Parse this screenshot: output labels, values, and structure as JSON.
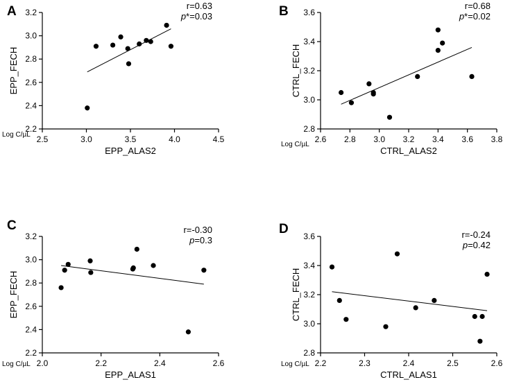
{
  "chart_data": [
    {
      "panel": "A",
      "type": "scatter",
      "xlabel": "EPP_ALAS2",
      "ylabel": "EPP_FECH",
      "unit_label": "Log C/µL",
      "stat_r": "r=0.63",
      "stat_p_prefix": "p",
      "stat_p_suffix": "*=0.03",
      "xlim": [
        2.5,
        4.5
      ],
      "ylim": [
        2.2,
        3.2
      ],
      "xticks": [
        2.5,
        3.0,
        3.5,
        4.0,
        4.5
      ],
      "yticks": [
        2.2,
        2.4,
        2.6,
        2.8,
        3.0,
        3.2
      ],
      "xtick_labels": [
        "2.5",
        "3.0",
        "3.5",
        "4.0",
        "4.5"
      ],
      "ytick_labels": [
        "2.2",
        "2.4",
        "2.6",
        "2.8",
        "3.0",
        "3.2"
      ],
      "points": [
        {
          "x": 3.01,
          "y": 2.38
        },
        {
          "x": 3.11,
          "y": 2.91
        },
        {
          "x": 3.3,
          "y": 2.92
        },
        {
          "x": 3.39,
          "y": 2.99
        },
        {
          "x": 3.47,
          "y": 2.89
        },
        {
          "x": 3.48,
          "y": 2.76
        },
        {
          "x": 3.6,
          "y": 2.93
        },
        {
          "x": 3.68,
          "y": 2.96
        },
        {
          "x": 3.73,
          "y": 2.95
        },
        {
          "x": 3.91,
          "y": 3.09
        },
        {
          "x": 3.96,
          "y": 2.91
        }
      ],
      "fit_line": {
        "x1": 3.01,
        "y1": 2.69,
        "x2": 3.96,
        "y2": 3.06
      }
    },
    {
      "panel": "B",
      "type": "scatter",
      "xlabel": "CTRL_ALAS2",
      "ylabel": "CTRL_FECH",
      "unit_label": "Log C/µL",
      "stat_r": "r=0.68",
      "stat_p_prefix": "p",
      "stat_p_suffix": "*=0.02",
      "xlim": [
        2.6,
        3.8
      ],
      "ylim": [
        2.8,
        3.6
      ],
      "xticks": [
        2.6,
        2.8,
        3.0,
        3.2,
        3.4,
        3.6,
        3.8
      ],
      "yticks": [
        2.8,
        3.0,
        3.2,
        3.4,
        3.6
      ],
      "xtick_labels": [
        "2.6",
        "2.8",
        "3.0",
        "3.2",
        "3.4",
        "3.6",
        "3.8"
      ],
      "ytick_labels": [
        "2.8",
        "3.0",
        "3.2",
        "3.4",
        "3.6"
      ],
      "points": [
        {
          "x": 2.74,
          "y": 3.05
        },
        {
          "x": 2.81,
          "y": 2.98
        },
        {
          "x": 2.93,
          "y": 3.11
        },
        {
          "x": 2.96,
          "y": 3.05
        },
        {
          "x": 2.96,
          "y": 3.04
        },
        {
          "x": 3.07,
          "y": 2.88
        },
        {
          "x": 3.26,
          "y": 3.16
        },
        {
          "x": 3.4,
          "y": 3.48
        },
        {
          "x": 3.4,
          "y": 3.34
        },
        {
          "x": 3.43,
          "y": 3.39
        },
        {
          "x": 3.63,
          "y": 3.16
        }
      ],
      "fit_line": {
        "x1": 2.74,
        "y1": 2.97,
        "x2": 3.63,
        "y2": 3.36
      }
    },
    {
      "panel": "C",
      "type": "scatter",
      "xlabel": "EPP_ALAS1",
      "ylabel": "EPP_FECH",
      "unit_label": "Log C/µL",
      "stat_r": "r=-0.30",
      "stat_p_prefix": "p",
      "stat_p_suffix": "=0.3",
      "xlim": [
        2.0,
        2.6
      ],
      "ylim": [
        2.2,
        3.2
      ],
      "xticks": [
        2.0,
        2.2,
        2.4,
        2.6
      ],
      "yticks": [
        2.2,
        2.4,
        2.6,
        2.8,
        3.0,
        3.2
      ],
      "xtick_labels": [
        "2.0",
        "2.2",
        "2.4",
        "2.6"
      ],
      "ytick_labels": [
        "2.2",
        "2.4",
        "2.6",
        "2.8",
        "3.0",
        "3.2"
      ],
      "points": [
        {
          "x": 2.064,
          "y": 2.76
        },
        {
          "x": 2.076,
          "y": 2.91
        },
        {
          "x": 2.088,
          "y": 2.96
        },
        {
          "x": 2.163,
          "y": 2.99
        },
        {
          "x": 2.165,
          "y": 2.89
        },
        {
          "x": 2.308,
          "y": 2.92
        },
        {
          "x": 2.31,
          "y": 2.93
        },
        {
          "x": 2.322,
          "y": 3.09
        },
        {
          "x": 2.378,
          "y": 2.95
        },
        {
          "x": 2.497,
          "y": 2.38
        },
        {
          "x": 2.55,
          "y": 2.91
        }
      ],
      "fit_line": {
        "x1": 2.064,
        "y1": 2.95,
        "x2": 2.55,
        "y2": 2.79
      }
    },
    {
      "panel": "D",
      "type": "scatter",
      "xlabel": "CTRL_ALAS1",
      "ylabel": "CTRL_FECH",
      "unit_label": "Log C/µL",
      "stat_r": "r=-0.24",
      "stat_p_prefix": "p",
      "stat_p_suffix": "=0.42",
      "xlim": [
        2.2,
        2.6
      ],
      "ylim": [
        2.8,
        3.6
      ],
      "xticks": [
        2.2,
        2.3,
        2.4,
        2.5,
        2.6
      ],
      "yticks": [
        2.8,
        3.0,
        3.2,
        3.4,
        3.6
      ],
      "xtick_labels": [
        "2.2",
        "2.3",
        "2.4",
        "2.5",
        "2.6"
      ],
      "ytick_labels": [
        "2.8",
        "3.0",
        "3.2",
        "3.4",
        "3.6"
      ],
      "points": [
        {
          "x": 2.226,
          "y": 3.39
        },
        {
          "x": 2.243,
          "y": 3.16
        },
        {
          "x": 2.258,
          "y": 3.03
        },
        {
          "x": 2.348,
          "y": 2.98
        },
        {
          "x": 2.374,
          "y": 3.48
        },
        {
          "x": 2.416,
          "y": 3.11
        },
        {
          "x": 2.458,
          "y": 3.16
        },
        {
          "x": 2.55,
          "y": 3.05
        },
        {
          "x": 2.562,
          "y": 2.88
        },
        {
          "x": 2.567,
          "y": 3.05
        },
        {
          "x": 2.578,
          "y": 3.34
        }
      ],
      "fit_line": {
        "x1": 2.226,
        "y1": 3.22,
        "x2": 2.578,
        "y2": 3.09
      }
    }
  ]
}
